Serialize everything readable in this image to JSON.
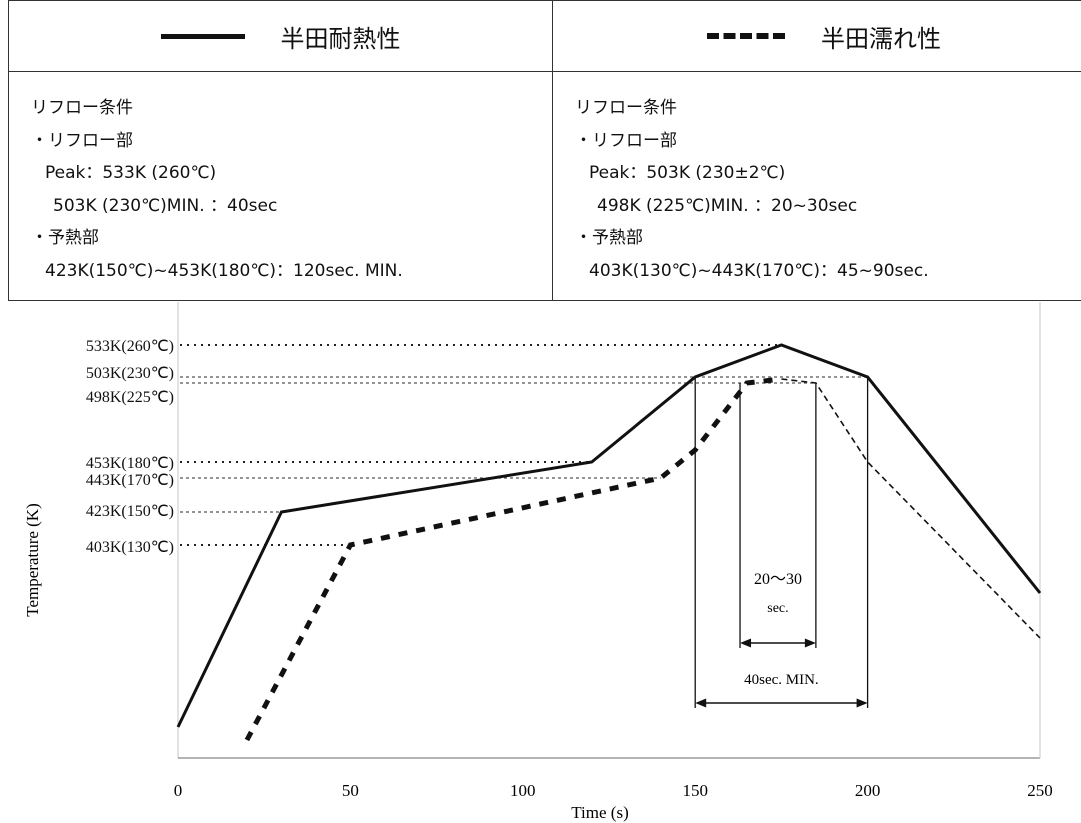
{
  "legend": {
    "solid_label": "半田耐熱性",
    "dashed_label": "半田濡れ性"
  },
  "left_conditions": {
    "title": "リフロー条件",
    "reflow_heading": "・リフロー部",
    "peak": "Peak：533K (260℃)",
    "min_time": "503K (230℃)MIN. ：40sec",
    "preheat_heading": "・予熱部",
    "preheat": "423K(150℃)~453K(180℃)：120sec. MIN."
  },
  "right_conditions": {
    "title": "リフロー条件",
    "reflow_heading": "・リフロー部",
    "peak": "Peak：503K (230±2℃)",
    "min_time": "498K (225℃)MIN. ：20~30sec",
    "preheat_heading": "・予熱部",
    "preheat": "403K(130℃)~443K(170℃)：45~90sec."
  },
  "chart_data": {
    "type": "line",
    "xlabel": "Time (s)",
    "ylabel": "Temperature (K)",
    "xlim": [
      0,
      250
    ],
    "x_ticks": [
      0,
      50,
      100,
      150,
      200,
      250
    ],
    "y_ref_lines": [
      {
        "value": 533,
        "label": "533K(260℃)"
      },
      {
        "value": 503,
        "label": "503K(230℃)"
      },
      {
        "value": 498,
        "label": "498K(225℃)"
      },
      {
        "value": 453,
        "label": "453K(180℃)"
      },
      {
        "value": 443,
        "label": "443K(170℃)"
      },
      {
        "value": 423,
        "label": "423K(150℃)"
      },
      {
        "value": 403,
        "label": "403K(130℃)"
      }
    ],
    "series": [
      {
        "name": "半田耐熱性",
        "style": "solid",
        "x": [
          0,
          30,
          120,
          150,
          175,
          200,
          250
        ],
        "y": [
          298,
          423,
          453,
          503,
          533,
          503,
          383
        ]
      },
      {
        "name": "半田濡れ性",
        "style": "dashed",
        "x": [
          20,
          50,
          140,
          150,
          165,
          175,
          185,
          200,
          250
        ],
        "y": [
          295,
          403,
          443,
          463,
          498,
          502,
          498,
          453,
          355
        ]
      }
    ],
    "annotations": [
      {
        "text_line1": "20～30",
        "text_line2": "sec.",
        "x_from": 163,
        "x_to": 185
      },
      {
        "text": "40sec. MIN.",
        "x_from": 150,
        "x_to": 200
      }
    ],
    "colors": {
      "line": "#111111",
      "ref_dark": "#222222",
      "ref_light": "#555555",
      "grid": "#d0d0d0"
    }
  }
}
